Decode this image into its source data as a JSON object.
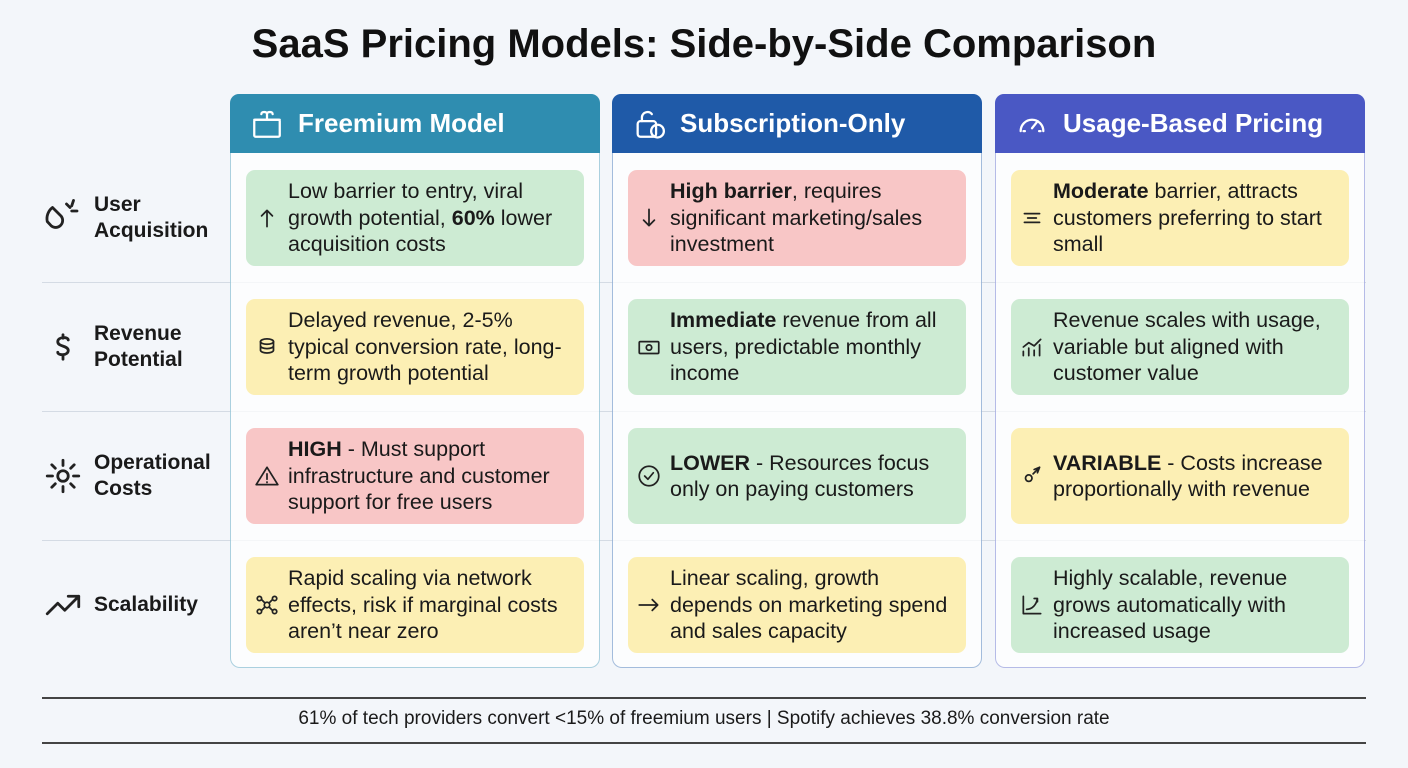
{
  "title": "SaaS Pricing Models: Side-by-Side Comparison",
  "columns": [
    {
      "name": "Freemium Model",
      "color": "#2f8db0"
    },
    {
      "name": "Subscription-Only",
      "color": "#1f5aa8"
    },
    {
      "name": "Usage-Based Pricing",
      "color": "#4a58c4"
    }
  ],
  "tones": {
    "green": "#cdebd3",
    "yellow": "#fcefb4",
    "red": "#f8c6c6"
  },
  "rows": [
    {
      "label": "User Acquisition",
      "cells": [
        {
          "tone": "green",
          "segments": [
            {
              "text": "Low barrier to entry, viral growth potential, ",
              "bold": false
            },
            {
              "text": "60%",
              "bold": true
            },
            {
              "text": " lower acquisition costs",
              "bold": false
            }
          ]
        },
        {
          "tone": "red",
          "segments": [
            {
              "text": "High barrier",
              "bold": true
            },
            {
              "text": ", requires significant marketing/sales investment",
              "bold": false
            }
          ]
        },
        {
          "tone": "yellow",
          "segments": [
            {
              "text": "Moderate",
              "bold": true
            },
            {
              "text": " barrier, attracts customers preferring to start small",
              "bold": false
            }
          ]
        }
      ]
    },
    {
      "label": "Revenue Potential",
      "cells": [
        {
          "tone": "yellow",
          "segments": [
            {
              "text": "Delayed revenue, 2-5% typical conversion rate, long-term growth potential",
              "bold": false
            }
          ]
        },
        {
          "tone": "green",
          "segments": [
            {
              "text": "Immediate",
              "bold": true
            },
            {
              "text": " revenue from all users, predictable monthly income",
              "bold": false
            }
          ]
        },
        {
          "tone": "green",
          "segments": [
            {
              "text": "Revenue scales with usage, variable but aligned with customer value",
              "bold": false
            }
          ]
        }
      ]
    },
    {
      "label": "Operational Costs",
      "cells": [
        {
          "tone": "red",
          "segments": [
            {
              "text": "HIGH",
              "bold": true
            },
            {
              "text": " - Must support infrastructure and customer support for free users",
              "bold": false
            }
          ]
        },
        {
          "tone": "green",
          "segments": [
            {
              "text": "LOWER",
              "bold": true
            },
            {
              "text": " - Resources focus only on paying customers",
              "bold": false
            }
          ]
        },
        {
          "tone": "yellow",
          "segments": [
            {
              "text": "VARIABLE",
              "bold": true
            },
            {
              "text": " - Costs increase proportionally with revenue",
              "bold": false
            }
          ]
        }
      ]
    },
    {
      "label": "Scalability",
      "cells": [
        {
          "tone": "yellow",
          "segments": [
            {
              "text": "Rapid scaling via network effects, risk if marginal costs aren’t near zero",
              "bold": false
            }
          ]
        },
        {
          "tone": "yellow",
          "segments": [
            {
              "text": "Linear scaling, growth depends on marketing spend and sales capacity",
              "bold": false
            }
          ]
        },
        {
          "tone": "green",
          "segments": [
            {
              "text": "Highly scalable, revenue grows automatically with increased usage",
              "bold": false
            }
          ]
        }
      ]
    }
  ],
  "footer": "61% of tech providers convert <15% of freemium users | Spotify achieves 38.8% conversion rate"
}
